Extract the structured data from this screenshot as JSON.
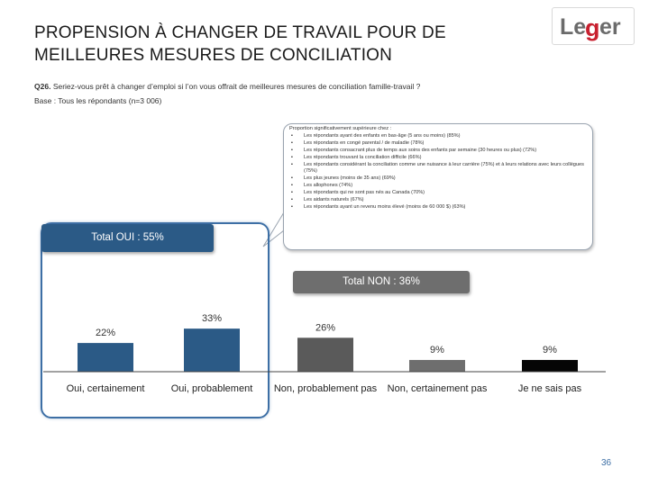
{
  "header": {
    "title_line1": "PROPENSION À CHANGER DE TRAVAIL POUR DE",
    "title_line2": "MEILLEURES MESURES DE CONCILIATION",
    "logo_text": "Leger"
  },
  "question": {
    "code": "Q26.",
    "text": "Seriez-vous prêt à changer d’emploi si l’on vous offrait de meilleures mesures de conciliation famille-travail ?",
    "base": "Base : Tous les répondants (n=3 006)"
  },
  "callout": {
    "heading": "Proportion significativement supérieure chez :",
    "items": [
      "Les répondants ayant des enfants en bas-âge (5 ans ou moins) (85%)",
      "Les répondants en congé parental / de maladie (78%)",
      "Les répondants consacrant plus de temps aux soins des enfants par semaine (30 heures ou plus) (72%)",
      "Les répondants trouvant la conciliation difficile (66%)",
      "Les répondants considérant la conciliation comme une nuisance à leur carrière (75%) et à leurs relations avec leurs collègues (75%)",
      "Les plus jeunes (moins de 35 ans) (69%)",
      "Les allophones (74%)",
      "Les répondants qui ne sont pas nés au Canada (70%)",
      "Les aidants naturels (67%)",
      "Les répondants ayant un revenu moins élevé (moins de 60 000 $) (63%)"
    ]
  },
  "totals": {
    "oui": "Total OUI : 55%",
    "non": "Total NON : 36%"
  },
  "chart_data": {
    "type": "bar",
    "title": "",
    "xlabel": "",
    "ylabel": "",
    "ylim": [
      0,
      40
    ],
    "grid": false,
    "categories": [
      "Oui, certainement",
      "Oui, probablement",
      "Non, probablement pas",
      "Non, certainement pas",
      "Je ne sais pas"
    ],
    "values": [
      22,
      33,
      26,
      9,
      9
    ],
    "value_labels": [
      "22%",
      "33%",
      "26%",
      "9%",
      "9%"
    ],
    "colors": [
      "#2b5a86",
      "#2b5a86",
      "#5a5a5a",
      "#6e6e6e",
      "#050505"
    ]
  },
  "footer": {
    "page_number": "36"
  }
}
